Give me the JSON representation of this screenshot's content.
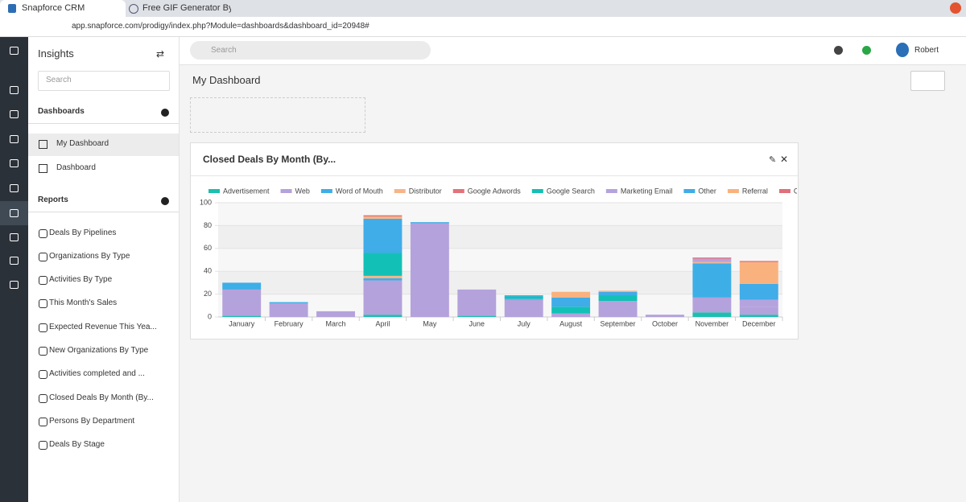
{
  "browser": {
    "tabs": [
      "Snapforce CRM",
      "Free GIF Generator By Sna"
    ],
    "url": "app.snapforce.com/prodigy/index.php?Module=dashboards&dashboard_id=20948#"
  },
  "sidebar": {
    "title": "Insights",
    "search": "Search",
    "dashboards_heading": "Dashboards",
    "dashboards": [
      "My Dashboard",
      "Dashboard"
    ],
    "reports_heading": "Reports",
    "reports": [
      "Deals By Pipelines",
      "Organizations By Type",
      "Activities By Type",
      "This Month's Sales",
      "Expected Revenue This Yea...",
      "New Organizations By Type",
      "Activities completed and ...",
      "Closed Deals By Month (By...",
      "Persons By Department",
      "Deals By Stage"
    ]
  },
  "topbar": {
    "search": "Search",
    "user": "Robert"
  },
  "page_title": "My Dashboard",
  "chart_data": {
    "type": "stacked-bar",
    "title": "Closed Deals By Month (By...",
    "categories": [
      "January",
      "February",
      "March",
      "April",
      "May",
      "June",
      "July",
      "August",
      "September",
      "October",
      "November",
      "December"
    ],
    "series": [
      {
        "name": "Advertisement",
        "color": "#1cbfb0",
        "values": [
          1,
          0,
          0,
          2,
          0,
          1,
          0,
          0,
          0,
          0,
          4,
          2
        ]
      },
      {
        "name": "Web",
        "color": "#b4a2dc",
        "values": [
          23,
          12,
          5,
          30,
          82,
          23,
          15,
          3,
          14,
          2,
          13,
          7
        ]
      },
      {
        "name": "Word of Mouth",
        "color": "#3eaee6",
        "values": [
          6,
          1,
          0,
          2,
          1,
          0,
          1,
          0,
          0,
          0,
          30,
          0
        ]
      },
      {
        "name": "Distributor",
        "color": "#f7b587",
        "values": [
          0,
          0,
          0,
          2,
          0,
          0,
          0,
          0,
          0,
          0,
          1,
          0
        ]
      },
      {
        "name": "Google Adwords",
        "color": "#e2737a",
        "values": [
          0,
          0,
          0,
          0,
          0,
          0,
          0,
          0,
          0,
          0,
          0,
          0
        ]
      },
      {
        "name": "Google Search",
        "color": "#13c0b6",
        "values": [
          0,
          0,
          0,
          20,
          0,
          0,
          2,
          6,
          5,
          0,
          0,
          0
        ]
      },
      {
        "name": "Marketing Email",
        "color": "#b5a3de",
        "values": [
          0,
          0,
          0,
          0,
          0,
          0,
          0,
          0,
          0,
          0,
          3,
          6
        ]
      },
      {
        "name": "Other",
        "color": "#40ace8",
        "values": [
          0,
          0,
          0,
          30,
          0,
          0,
          1,
          8,
          3,
          0,
          0,
          14
        ]
      },
      {
        "name": "Referral",
        "color": "#f9b27e",
        "values": [
          0,
          0,
          0,
          2,
          0,
          0,
          0,
          5,
          1,
          0,
          0,
          19
        ]
      },
      {
        "name": "Cold Call",
        "color": "#e0707a",
        "values": [
          0,
          0,
          0,
          1,
          0,
          0,
          0,
          0,
          0,
          0,
          1,
          1
        ]
      }
    ],
    "ylim": [
      0,
      100
    ],
    "yticks": [
      0,
      20,
      40,
      60,
      80,
      100
    ],
    "grid": true
  }
}
